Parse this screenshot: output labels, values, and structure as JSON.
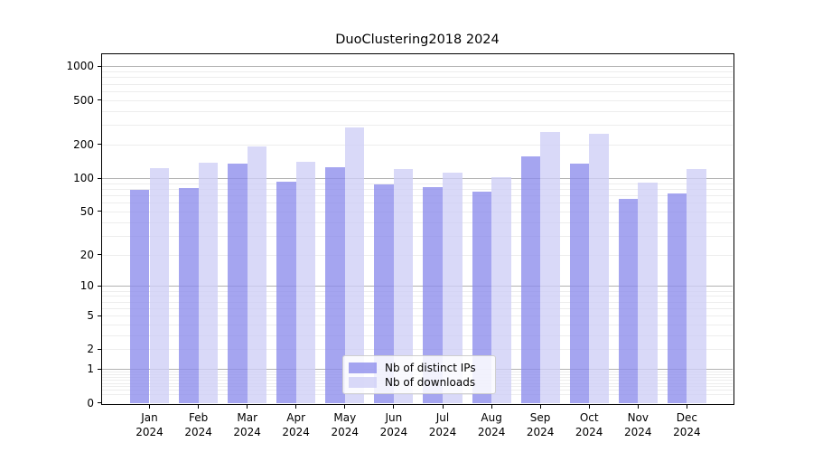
{
  "chart_data": {
    "type": "bar",
    "title": "DuoClustering2018 2024",
    "categories": [
      "Jan 2024",
      "Feb 2024",
      "Mar 2024",
      "Apr 2024",
      "May 2024",
      "Jun 2024",
      "Jul 2024",
      "Aug 2024",
      "Sep 2024",
      "Oct 2024",
      "Nov 2024",
      "Dec 2024"
    ],
    "series": [
      {
        "name": "Nb of distinct IPs",
        "color": "rgba(140,140,236,0.78)",
        "values": [
          78,
          81,
          134,
          93,
          126,
          88,
          83,
          75,
          156,
          135,
          65,
          73
        ]
      },
      {
        "name": "Nb of downloads",
        "color": "rgba(206,206,246,0.78)",
        "values": [
          122,
          138,
          191,
          140,
          285,
          120,
          111,
          101,
          260,
          250,
          91,
          120
        ]
      }
    ],
    "xlabel": "",
    "ylabel": "",
    "yscale": "log1p",
    "y_ticks": [
      0,
      1,
      2,
      5,
      10,
      20,
      50,
      100,
      200,
      500,
      1000
    ],
    "ylim": [
      0,
      1285
    ],
    "grid": true,
    "grid_major_values": [
      1,
      10,
      100,
      1000
    ],
    "grid_major_color": "#b2b2b2",
    "grid_minor_color": "#ededed",
    "legend_position": "lower center"
  }
}
